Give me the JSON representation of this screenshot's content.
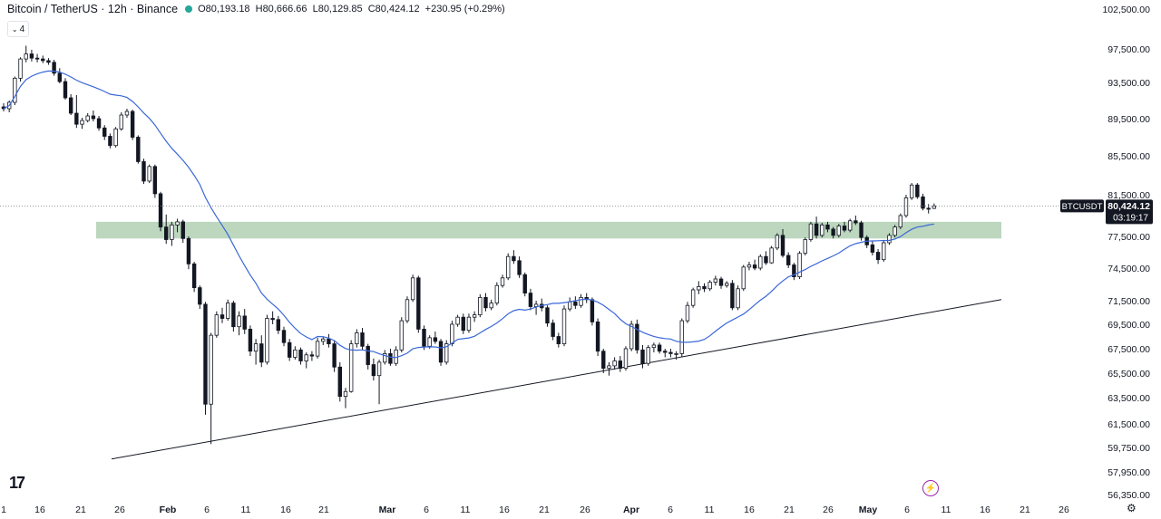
{
  "header": {
    "symbol": "Bitcoin / TetherUS · 12h · Binance",
    "open": "O80,193.18",
    "high": "H80,666.66",
    "low": "L80,129.85",
    "close": "C80,424.12",
    "change": "+230.95 (+0.29%)",
    "status_color": "#26a69a",
    "indicator_toggle": "4"
  },
  "price_label": {
    "ticker": "BTCUSDT",
    "price": "80,424.12",
    "countdown": "03:19:17"
  },
  "colors": {
    "up": "#131722",
    "down": "#131722",
    "up_fill": "#ffffff",
    "ma": "#3a67d8",
    "zone": "#a5c9a8",
    "trendline": "#131722"
  },
  "chart_data": {
    "type": "candlestick",
    "symbol": "BTCUSDT",
    "interval": "12h",
    "y_ticks": [
      "102,500.00",
      "97,500.00",
      "93,500.00",
      "89,500.00",
      "85,500.00",
      "81,500.00",
      "77,500.00",
      "74,500.00",
      "71,500.00",
      "69,500.00",
      "67,500.00",
      "65,500.00",
      "63,500.00",
      "61,500.00",
      "59,750.00",
      "57,950.00",
      "56,350.00"
    ],
    "x_ticks": [
      "1",
      "16",
      "21",
      "26",
      "Feb",
      "6",
      "11",
      "16",
      "21",
      "Mar",
      "6",
      "11",
      "16",
      "21",
      "26",
      "Apr",
      "6",
      "11",
      "16",
      "21",
      "26",
      "May",
      "6",
      "11",
      "16",
      "21",
      "26"
    ],
    "last_price": 80424.12,
    "ma_period": 20,
    "resistance_zone": [
      77300,
      78900
    ],
    "trendline": [
      {
        "t": 0,
        "price": 58900
      },
      {
        "t": 1,
        "price": 71600
      }
    ],
    "candles": [
      [
        90800,
        91200,
        90300,
        90600
      ],
      [
        90600,
        91500,
        90200,
        91300
      ],
      [
        91300,
        94200,
        91000,
        94000
      ],
      [
        94000,
        96500,
        93600,
        96300
      ],
      [
        96300,
        97900,
        95900,
        96900
      ],
      [
        96900,
        97400,
        96000,
        96400
      ],
      [
        96400,
        96900,
        95900,
        96300
      ],
      [
        96300,
        96700,
        95800,
        96100
      ],
      [
        96100,
        96400,
        95600,
        95900
      ],
      [
        95900,
        96200,
        94300,
        94600
      ],
      [
        94600,
        95200,
        93400,
        93600
      ],
      [
        93600,
        94000,
        91600,
        91800
      ],
      [
        91800,
        92200,
        89900,
        90100
      ],
      [
        90100,
        92100,
        88500,
        88900
      ],
      [
        88900,
        89600,
        88400,
        89300
      ],
      [
        89300,
        90100,
        89100,
        89800
      ],
      [
        89800,
        90400,
        89200,
        89500
      ],
      [
        89500,
        89800,
        88200,
        88500
      ],
      [
        88500,
        88800,
        87200,
        87600
      ],
      [
        87600,
        87900,
        86300,
        86600
      ],
      [
        86600,
        88600,
        86400,
        88400
      ],
      [
        88400,
        90200,
        88200,
        89900
      ],
      [
        89900,
        90600,
        89600,
        90300
      ],
      [
        90300,
        90500,
        87200,
        87500
      ],
      [
        87500,
        87700,
        84700,
        84900
      ],
      [
        84900,
        85200,
        82600,
        82900
      ],
      [
        82900,
        84600,
        82700,
        84400
      ],
      [
        84400,
        84600,
        81200,
        81600
      ],
      [
        81600,
        81800,
        78000,
        78400
      ],
      [
        78400,
        79600,
        76800,
        77200
      ],
      [
        77200,
        78900,
        76600,
        78600
      ],
      [
        78600,
        79200,
        77900,
        78900
      ],
      [
        78900,
        79100,
        76900,
        77300
      ],
      [
        77300,
        77500,
        74400,
        74900
      ],
      [
        74900,
        75100,
        72300,
        72700
      ],
      [
        72700,
        72900,
        70800,
        71200
      ],
      [
        71200,
        71400,
        62200,
        63000
      ],
      [
        63000,
        68800,
        60000,
        68600
      ],
      [
        68600,
        70600,
        68400,
        70300
      ],
      [
        70300,
        70900,
        69600,
        70000
      ],
      [
        70000,
        71600,
        69800,
        71300
      ],
      [
        71300,
        71500,
        68900,
        69300
      ],
      [
        69300,
        70600,
        68600,
        70200
      ],
      [
        70200,
        70800,
        68700,
        69100
      ],
      [
        69100,
        69400,
        66900,
        67300
      ],
      [
        67300,
        68300,
        66200,
        67900
      ],
      [
        67900,
        68600,
        66000,
        66400
      ],
      [
        66400,
        70300,
        66200,
        70000
      ],
      [
        70000,
        70600,
        69500,
        69900
      ],
      [
        69900,
        70200,
        68700,
        69000
      ],
      [
        69000,
        69300,
        67700,
        68000
      ],
      [
        68000,
        68300,
        66500,
        66800
      ],
      [
        66800,
        67700,
        66600,
        67400
      ],
      [
        67400,
        67600,
        66200,
        66500
      ],
      [
        66500,
        67200,
        65900,
        67000
      ],
      [
        67000,
        67300,
        66500,
        66900
      ],
      [
        66900,
        68400,
        66700,
        68100
      ],
      [
        68100,
        68500,
        67800,
        68300
      ],
      [
        68300,
        68700,
        67600,
        67900
      ],
      [
        67900,
        68200,
        65600,
        66000
      ],
      [
        66000,
        66400,
        63200,
        63600
      ],
      [
        63600,
        64300,
        62700,
        64000
      ],
      [
        64000,
        68200,
        63900,
        67900
      ],
      [
        67900,
        69100,
        67600,
        68800
      ],
      [
        68800,
        69200,
        67400,
        67700
      ],
      [
        67700,
        67900,
        65800,
        66200
      ],
      [
        66200,
        66700,
        64900,
        65300
      ],
      [
        65300,
        66600,
        63000,
        66400
      ],
      [
        66400,
        67400,
        66200,
        67100
      ],
      [
        67100,
        67500,
        66100,
        66300
      ],
      [
        66300,
        67700,
        66100,
        67400
      ],
      [
        67400,
        70100,
        67200,
        69800
      ],
      [
        69800,
        71900,
        69600,
        71600
      ],
      [
        71600,
        73900,
        71400,
        73600
      ],
      [
        73600,
        73800,
        68800,
        69100
      ],
      [
        69100,
        69400,
        67400,
        67700
      ],
      [
        67700,
        68600,
        67500,
        68400
      ],
      [
        68400,
        68900,
        67900,
        68100
      ],
      [
        68100,
        68300,
        66100,
        66400
      ],
      [
        66400,
        68200,
        66200,
        67900
      ],
      [
        67900,
        69800,
        67700,
        69500
      ],
      [
        69500,
        70300,
        69300,
        70100
      ],
      [
        70100,
        70400,
        68700,
        69000
      ],
      [
        69000,
        70400,
        68800,
        70100
      ],
      [
        70100,
        70600,
        69700,
        70300
      ],
      [
        70300,
        72100,
        70100,
        71800
      ],
      [
        71800,
        72200,
        70600,
        70900
      ],
      [
        70900,
        71600,
        70700,
        71300
      ],
      [
        71300,
        73200,
        71100,
        72900
      ],
      [
        72900,
        73900,
        72700,
        73600
      ],
      [
        73600,
        75900,
        73400,
        75600
      ],
      [
        75600,
        76200,
        74900,
        75200
      ],
      [
        75200,
        75600,
        73600,
        73900
      ],
      [
        73900,
        74100,
        71900,
        72200
      ],
      [
        72200,
        72600,
        70700,
        71000
      ],
      [
        71000,
        71500,
        70300,
        71200
      ],
      [
        71200,
        71700,
        70600,
        70900
      ],
      [
        70900,
        71100,
        69300,
        69600
      ],
      [
        69600,
        69900,
        68200,
        68500
      ],
      [
        68500,
        68800,
        67600,
        67900
      ],
      [
        67900,
        71100,
        67700,
        70800
      ],
      [
        70800,
        71800,
        70600,
        71400
      ],
      [
        71400,
        71900,
        70800,
        71100
      ],
      [
        71100,
        72100,
        70900,
        71800
      ],
      [
        71800,
        72200,
        71300,
        71600
      ],
      [
        71600,
        71800,
        69400,
        69700
      ],
      [
        69700,
        70000,
        66900,
        67300
      ],
      [
        67300,
        67500,
        65500,
        65900
      ],
      [
        65900,
        66400,
        65300,
        66100
      ],
      [
        66100,
        66800,
        65800,
        66500
      ],
      [
        66500,
        66900,
        65600,
        65900
      ],
      [
        65900,
        67700,
        65700,
        67500
      ],
      [
        67500,
        69800,
        67300,
        69500
      ],
      [
        69500,
        69900,
        67100,
        67400
      ],
      [
        67400,
        67800,
        65900,
        66300
      ],
      [
        66300,
        67800,
        66100,
        67600
      ],
      [
        67600,
        68000,
        67200,
        67800
      ],
      [
        67800,
        68000,
        67100,
        67300
      ],
      [
        67300,
        67500,
        66800,
        67200
      ],
      [
        67200,
        67500,
        66800,
        67100
      ],
      [
        67100,
        67300,
        66600,
        67100
      ],
      [
        67100,
        70000,
        66800,
        69800
      ],
      [
        69800,
        71400,
        69600,
        71100
      ],
      [
        71100,
        72700,
        70900,
        72500
      ],
      [
        72500,
        73300,
        72100,
        72800
      ],
      [
        72800,
        73100,
        72300,
        72600
      ],
      [
        72600,
        73400,
        72400,
        73200
      ],
      [
        73200,
        73800,
        72900,
        73500
      ],
      [
        73500,
        73700,
        72600,
        72900
      ],
      [
        72900,
        73300,
        72700,
        73100
      ],
      [
        73100,
        73400,
        70700,
        70900
      ],
      [
        70900,
        72900,
        70700,
        72600
      ],
      [
        72600,
        74800,
        72400,
        74600
      ],
      [
        74600,
        75100,
        74300,
        74800
      ],
      [
        74800,
        75300,
        74300,
        74500
      ],
      [
        74500,
        75800,
        74300,
        75600
      ],
      [
        75600,
        76100,
        74800,
        75000
      ],
      [
        75000,
        76600,
        74900,
        76400
      ],
      [
        76400,
        77800,
        76200,
        77600
      ],
      [
        77600,
        78200,
        75500,
        75700
      ],
      [
        75700,
        76000,
        74500,
        74800
      ],
      [
        74800,
        75000,
        73400,
        73700
      ],
      [
        73700,
        76100,
        73500,
        75900
      ],
      [
        75900,
        77400,
        75700,
        77200
      ],
      [
        77200,
        78900,
        77000,
        78700
      ],
      [
        78700,
        79400,
        77300,
        77600
      ],
      [
        77600,
        78800,
        77400,
        78600
      ],
      [
        78600,
        78900,
        77900,
        78200
      ],
      [
        78200,
        78400,
        77300,
        77600
      ],
      [
        77600,
        78700,
        77400,
        78500
      ],
      [
        78500,
        78900,
        77900,
        78100
      ],
      [
        78100,
        79200,
        77900,
        79000
      ],
      [
        79000,
        79500,
        78600,
        78800
      ],
      [
        78800,
        79000,
        77100,
        77400
      ],
      [
        77400,
        77600,
        76400,
        76700
      ],
      [
        76700,
        77100,
        75700,
        76000
      ],
      [
        76000,
        76300,
        74900,
        75300
      ],
      [
        75300,
        77100,
        75100,
        76900
      ],
      [
        76900,
        77800,
        76700,
        77600
      ],
      [
        77600,
        78600,
        77400,
        78400
      ],
      [
        78400,
        79700,
        78200,
        79500
      ],
      [
        79500,
        81500,
        79300,
        81200
      ],
      [
        81200,
        82700,
        81000,
        82500
      ],
      [
        82500,
        82700,
        81100,
        81300
      ],
      [
        81300,
        81600,
        80000,
        80200
      ],
      [
        80200,
        80600,
        79700,
        80193
      ],
      [
        80193,
        80667,
        80130,
        80424
      ]
    ]
  }
}
